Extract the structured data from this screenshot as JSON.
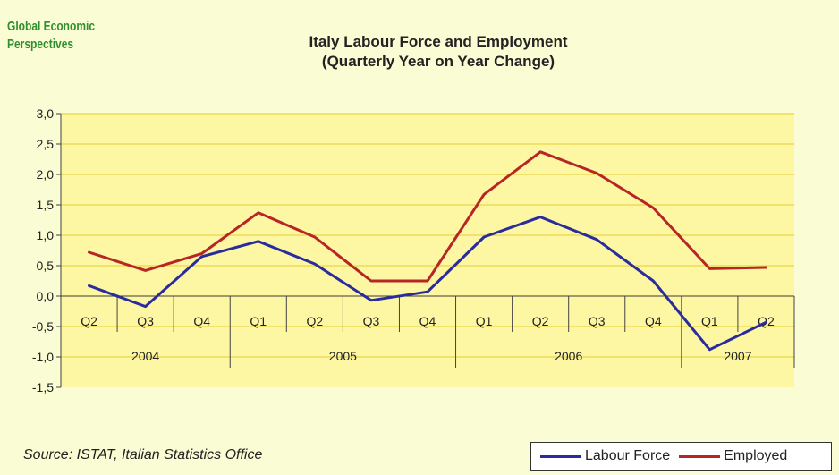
{
  "brand": {
    "line1": "Global Economic",
    "line2": "Perspectives"
  },
  "source": "Source: ISTAT, Italian Statistics Office",
  "colors": {
    "background": "#fafcd3",
    "plot_area": "#fdf6a3",
    "gridline": "#e8d64a",
    "labour_force": "#2a2c9e",
    "employed": "#b82525",
    "axis": "#444444"
  },
  "chart_data": {
    "type": "line",
    "title": "Italy  Labour Force and Employment",
    "subtitle": "(Quarterly Year on Year Change)",
    "categories": [
      "Q2",
      "Q3",
      "Q4",
      "Q1",
      "Q2",
      "Q3",
      "Q4",
      "Q1",
      "Q2",
      "Q3",
      "Q4",
      "Q1",
      "Q2"
    ],
    "years": [
      {
        "label": "2004",
        "quarters": 3
      },
      {
        "label": "2005",
        "quarters": 4
      },
      {
        "label": "2006",
        "quarters": 4
      },
      {
        "label": "2007",
        "quarters": 2
      }
    ],
    "series": [
      {
        "name": "Labour Force",
        "color": "#2a2c9e",
        "values": [
          0.17,
          -0.17,
          0.65,
          0.9,
          0.53,
          -0.07,
          0.07,
          0.97,
          1.3,
          0.93,
          0.25,
          -0.88,
          -0.43
        ]
      },
      {
        "name": "Employed",
        "color": "#b82525",
        "values": [
          0.72,
          0.42,
          0.7,
          1.37,
          0.97,
          0.25,
          0.25,
          1.67,
          2.37,
          2.02,
          1.45,
          0.45,
          0.47
        ]
      }
    ],
    "ylim": [
      -1.5,
      3.0
    ],
    "yticks": [
      "3,0",
      "2,5",
      "2,0",
      "1,5",
      "1,0",
      "0,5",
      "0,0",
      "-0,5",
      "-1,0",
      "-1,5"
    ],
    "grid": true,
    "legend_position": "bottom-right"
  }
}
